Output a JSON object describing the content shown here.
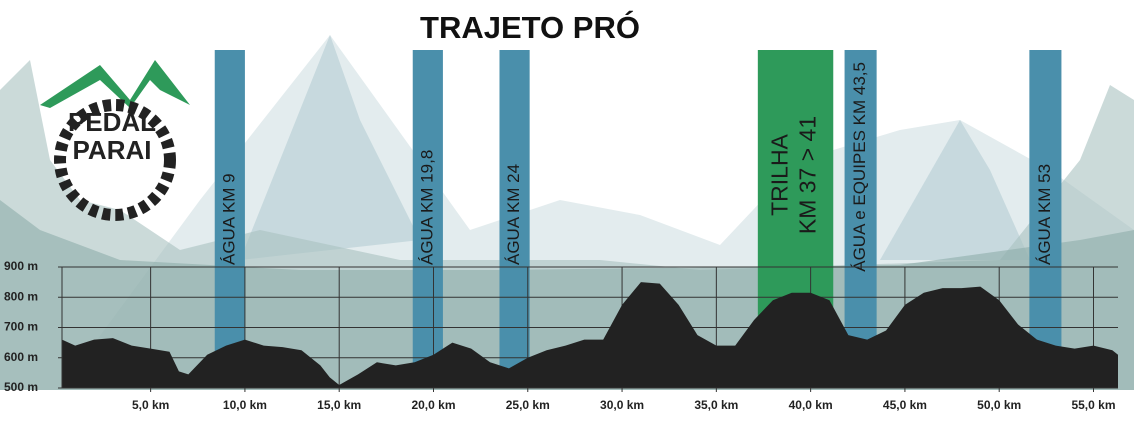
{
  "chart_data": {
    "type": "area",
    "title": "TRAJETO PRÓ",
    "logo": [
      "PEDAL",
      "PARAI"
    ],
    "color": "#222222",
    "x": [
      0.3,
      1,
      2,
      3,
      4,
      5,
      6,
      6.5,
      7,
      8,
      9,
      10,
      11,
      12,
      13,
      14,
      14.5,
      15,
      16,
      17,
      18,
      19,
      20,
      21,
      22,
      23,
      24,
      25,
      26,
      27,
      28,
      29,
      30,
      31,
      32,
      33,
      34,
      35,
      36,
      37,
      38,
      39,
      40,
      41,
      42,
      43,
      44,
      45,
      46,
      47,
      48,
      49,
      50,
      51,
      52,
      53,
      54,
      55,
      56,
      56.3
    ],
    "values": [
      660,
      640,
      660,
      665,
      640,
      630,
      620,
      555,
      545,
      610,
      640,
      660,
      640,
      635,
      625,
      575,
      535,
      510,
      545,
      585,
      575,
      585,
      610,
      650,
      630,
      585,
      565,
      600,
      625,
      640,
      660,
      660,
      775,
      850,
      845,
      775,
      675,
      640,
      640,
      725,
      790,
      815,
      815,
      790,
      675,
      660,
      690,
      775,
      815,
      830,
      830,
      835,
      790,
      710,
      660,
      640,
      630,
      640,
      625,
      610
    ],
    "xlim": [
      0.3,
      56.3
    ],
    "ylim": [
      500,
      900
    ],
    "xticks": [
      {
        "value": 5,
        "label": "5,0 km"
      },
      {
        "value": 10,
        "label": "10,0 km"
      },
      {
        "value": 15,
        "label": "15,0 km"
      },
      {
        "value": 20,
        "label": "20,0 km"
      },
      {
        "value": 25,
        "label": "25,0 km"
      },
      {
        "value": 30,
        "label": "30,0 km"
      },
      {
        "value": 35,
        "label": "35,0 km"
      },
      {
        "value": 40,
        "label": "40,0 km"
      },
      {
        "value": 45,
        "label": "45,0 km"
      },
      {
        "value": 50,
        "label": "50,0 km"
      },
      {
        "value": 55,
        "label": "55,0 km"
      }
    ],
    "yticks": [
      {
        "value": 500,
        "label": "500 m"
      },
      {
        "value": 600,
        "label": "600 m"
      },
      {
        "value": 700,
        "label": "700 m"
      },
      {
        "value": 800,
        "label": "800 m"
      },
      {
        "value": 900,
        "label": "900 m"
      }
    ],
    "grid": true,
    "bands": [
      {
        "lines": [
          "ÁGUA KM 9"
        ],
        "start": 8.4,
        "end": 10.0,
        "color": "#4a8fab"
      },
      {
        "lines": [
          "ÁGUA KM 19,8"
        ],
        "start": 18.9,
        "end": 20.5,
        "color": "#4a8fab"
      },
      {
        "lines": [
          "ÁGUA KM 24"
        ],
        "start": 23.5,
        "end": 25.1,
        "color": "#4a8fab"
      },
      {
        "lines": [
          "TRILHA",
          "KM 37 > 41"
        ],
        "start": 37.2,
        "end": 41.2,
        "color": "#2e9a5a"
      },
      {
        "lines": [
          "ÁGUA e EQUIPES KM 43,5"
        ],
        "start": 41.8,
        "end": 43.5,
        "color": "#4a8fab"
      },
      {
        "lines": [
          "ÁGUA KM 53"
        ],
        "start": 51.6,
        "end": 53.3,
        "color": "#4a8fab"
      }
    ]
  }
}
